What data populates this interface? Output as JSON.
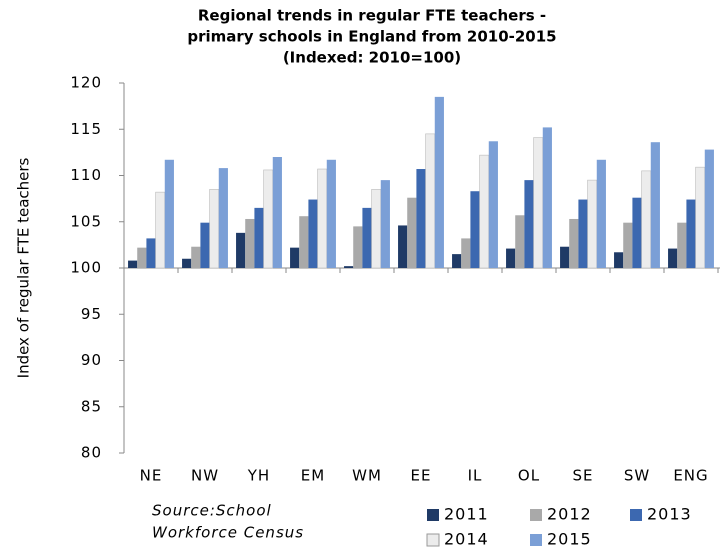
{
  "chart_data": {
    "type": "bar",
    "title": [
      "Regional trends in regular FTE teachers -",
      "primary schools in England from 2010-2015",
      "(Indexed: 2010=100)"
    ],
    "y_label": "Index of regular FTE teachers",
    "source": [
      "Source:School",
      "Workforce Census"
    ],
    "categories": [
      "NE",
      "NW",
      "YH",
      "EM",
      "WM",
      "EE",
      "IL",
      "OL",
      "SE",
      "SW",
      "ENG"
    ],
    "series": [
      {
        "name": "2011",
        "color": "#1f3a66",
        "values": [
          100.8,
          101.0,
          103.8,
          102.2,
          100.2,
          104.6,
          101.5,
          102.1,
          102.3,
          101.7,
          102.1
        ]
      },
      {
        "name": "2012",
        "color": "#a9a9a9",
        "values": [
          102.2,
          102.3,
          105.3,
          105.6,
          104.5,
          107.6,
          103.2,
          105.7,
          105.3,
          104.9,
          104.9
        ]
      },
      {
        "name": "2013",
        "color": "#3c68b0",
        "values": [
          103.2,
          104.9,
          106.5,
          107.4,
          106.5,
          110.7,
          108.3,
          109.5,
          107.4,
          107.6,
          107.4
        ]
      },
      {
        "name": "2014",
        "color": "#ececec",
        "values": [
          108.2,
          108.5,
          110.6,
          110.7,
          108.5,
          114.5,
          112.2,
          114.1,
          109.5,
          110.5,
          110.9
        ]
      },
      {
        "name": "2015",
        "color": "#7b9fd6",
        "values": [
          111.7,
          110.8,
          112.0,
          111.7,
          109.5,
          118.5,
          113.7,
          115.2,
          111.7,
          113.6,
          112.8
        ]
      }
    ],
    "ylim": [
      80,
      120
    ],
    "yticks": [
      80,
      85,
      90,
      95,
      100,
      105,
      110,
      115,
      120
    ],
    "x_axis_crosses": 100,
    "grid": false
  }
}
